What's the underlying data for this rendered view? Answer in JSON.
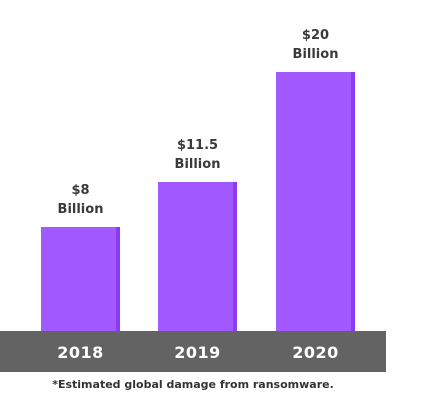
{
  "chart_data": {
    "type": "bar",
    "categories": [
      "2018",
      "2019",
      "2020"
    ],
    "values": [
      8,
      11.5,
      20
    ],
    "data_labels": [
      {
        "amount": "$8",
        "unit": "Billion"
      },
      {
        "amount": "$11.5",
        "unit": "Billion"
      },
      {
        "amount": "$20",
        "unit": "Billion"
      }
    ],
    "ylim": [
      0,
      20
    ],
    "grid": false,
    "bar_color": "#a259ff",
    "baseline_color": "#636363"
  },
  "footnote": "*Estimated global damage from ransomware."
}
